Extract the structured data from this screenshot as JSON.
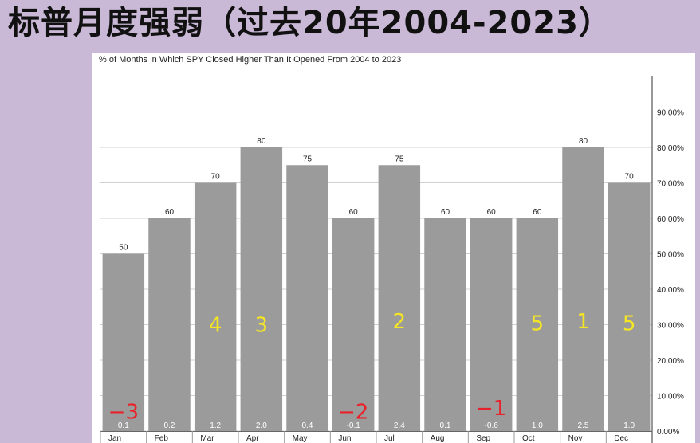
{
  "slide": {
    "title": "标普月度强弱（过去20年2004-2023）"
  },
  "colors": {
    "bar": "#9b9b9b",
    "grid": "#d0d0d0",
    "rank_positive": "#f5e625",
    "rank_negative": "#e8222a"
  },
  "chart_data": {
    "type": "bar",
    "title": "% of Months in Which SPY Closed Higher Than It Opened From 2004 to 2023",
    "xlabel": "",
    "ylabel": "",
    "ylim": [
      0,
      100
    ],
    "grid": true,
    "y_ticks": [
      "0.00%",
      "10.00%",
      "20.00%",
      "30.00%",
      "40.00%",
      "50.00%",
      "60.00%",
      "70.00%",
      "80.00%",
      "90.00%"
    ],
    "categories": [
      "Jan",
      "Feb",
      "Mar",
      "Apr",
      "May",
      "Jun",
      "Jul",
      "Aug",
      "Sep",
      "Oct",
      "Nov",
      "Dec"
    ],
    "values": [
      50,
      60,
      70,
      80,
      75,
      60,
      75,
      60,
      60,
      60,
      80,
      70
    ],
    "value_labels": [
      "50",
      "60",
      "70",
      "80",
      "75",
      "60",
      "75",
      "60",
      "60",
      "60",
      "80",
      "70"
    ],
    "avg_change": [
      "0.1",
      "0.2",
      "1.2",
      "2.0",
      "0.4",
      "-0.1",
      "2.4",
      "0.1",
      "-0.6",
      "1.0",
      "2.5",
      "1.0"
    ],
    "annotations": [
      {
        "month": "Jan",
        "text": "−3",
        "kind": "negative",
        "level": 5.5
      },
      {
        "month": "Mar",
        "text": "4",
        "kind": "positive",
        "level": 30
      },
      {
        "month": "Apr",
        "text": "3",
        "kind": "positive",
        "level": 30
      },
      {
        "month": "Jun",
        "text": "−2",
        "kind": "negative",
        "level": 5.5
      },
      {
        "month": "Jul",
        "text": "2",
        "kind": "positive",
        "level": 31
      },
      {
        "month": "Sep",
        "text": "−1",
        "kind": "negative",
        "level": 6.5
      },
      {
        "month": "Oct",
        "text": "5",
        "kind": "positive",
        "level": 30.5
      },
      {
        "month": "Nov",
        "text": "1",
        "kind": "positive",
        "level": 31
      },
      {
        "month": "Dec",
        "text": "5",
        "kind": "positive",
        "level": 30.5
      }
    ]
  }
}
